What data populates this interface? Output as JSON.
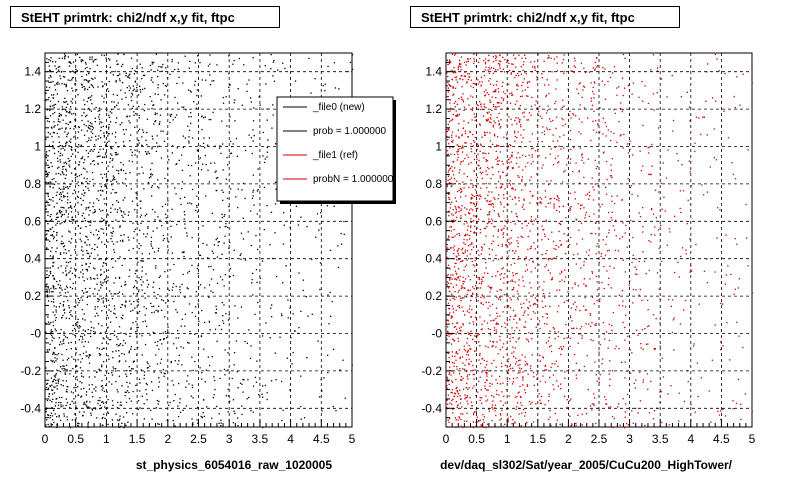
{
  "colors": {
    "new": "#000000",
    "ref": "#cc0000",
    "grid": "#000000"
  },
  "chart_data": [
    {
      "type": "scatter",
      "title": "StEHT primtrk: chi2/ndf x,y fit, ftpc",
      "xlabel": "st_physics_6054016_raw_1020005",
      "ylabel": "",
      "xlim": [
        0,
        5
      ],
      "ylim": [
        -0.5,
        1.5
      ],
      "xticks": [
        "0",
        "0.5",
        "1",
        "1.5",
        "2",
        "2.5",
        "3",
        "3.5",
        "4",
        "4.5",
        "5"
      ],
      "yticks": [
        "-0.4",
        "-0.2",
        "-0",
        "0.2",
        "0.4",
        "0.6",
        "0.8",
        "1",
        "1.2",
        "1.4"
      ],
      "grid": true,
      "legend_position": "top-right",
      "legend": [
        {
          "label": "_file0 (new)",
          "color": "#000000"
        },
        {
          "label": "prob = 1.000000",
          "color": "#000000"
        },
        {
          "label": "_file1 (ref)",
          "color": "#cc0000"
        },
        {
          "label": "probN = 1.000000",
          "color": "#cc0000"
        }
      ],
      "series": [
        {
          "color": "#000000",
          "density": "decreasing with x, concentrated at x < 2"
        }
      ]
    },
    {
      "type": "scatter",
      "title": "StEHT primtrk: chi2/ndf x,y fit, ftpc",
      "xlabel": "dev/daq_sl302/Sat/year_2005/CuCu200_HighTower/",
      "ylabel": "",
      "xlim": [
        0,
        5
      ],
      "ylim": [
        -0.5,
        1.5
      ],
      "xticks": [
        "0",
        "0.5",
        "1",
        "1.5",
        "2",
        "2.5",
        "3",
        "3.5",
        "4",
        "4.5",
        "5"
      ],
      "yticks": [
        "-0.4",
        "-0.2",
        "-0",
        "0.2",
        "0.4",
        "0.6",
        "0.8",
        "1",
        "1.2",
        "1.4"
      ],
      "grid": true,
      "series": [
        {
          "color": "#cc0000",
          "density": "decreasing with x, concentrated at x < 2"
        }
      ]
    }
  ]
}
